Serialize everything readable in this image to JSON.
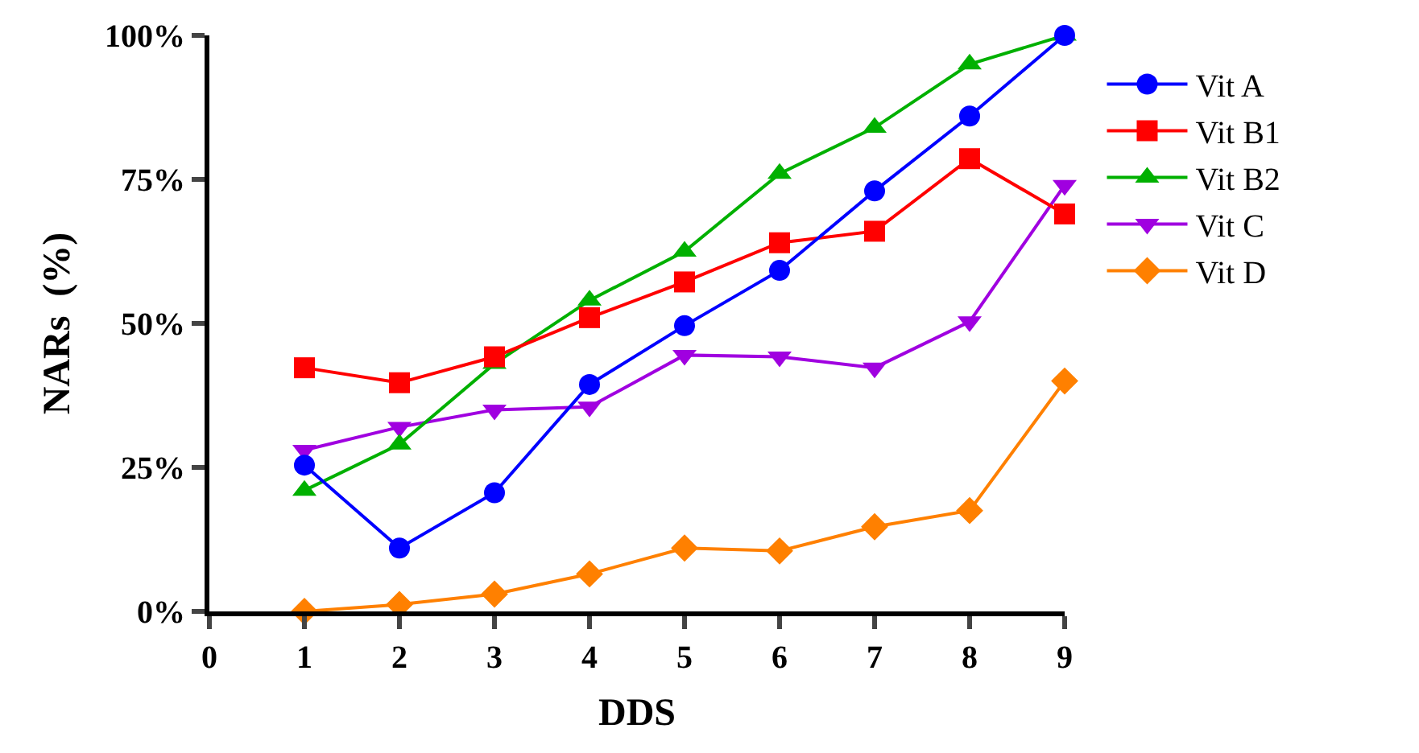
{
  "chart_data": {
    "type": "line",
    "xlabel": "DDS",
    "ylabel": "NARs  (%)",
    "x": [
      1,
      2,
      3,
      4,
      5,
      6,
      7,
      8,
      9
    ],
    "xlim": [
      0,
      9
    ],
    "xticks": [
      0,
      1,
      2,
      3,
      4,
      5,
      6,
      7,
      8,
      9
    ],
    "ylim": [
      0,
      100
    ],
    "yticks": [
      {
        "value": 0,
        "label": "0%"
      },
      {
        "value": 25,
        "label": "25%"
      },
      {
        "value": 50,
        "label": "50%"
      },
      {
        "value": 75,
        "label": "75%"
      },
      {
        "value": 100,
        "label": "100%"
      }
    ],
    "legend": "right",
    "line_style": "solid",
    "series": [
      {
        "name": "Vit A",
        "color": "#0000ff",
        "marker": "circle",
        "values": [
          25.4,
          11,
          20.6,
          39.4,
          49.6,
          59.2,
          73,
          86,
          100
        ]
      },
      {
        "name": "Vit B1",
        "color": "#ff0000",
        "marker": "square",
        "values": [
          42.3,
          39.7,
          44.2,
          51,
          57.2,
          64,
          66,
          78.6,
          69
        ]
      },
      {
        "name": "Vit B2",
        "color": "#00b000",
        "marker": "triangle",
        "values": [
          21,
          29,
          43,
          54,
          62.5,
          76,
          84,
          95,
          100
        ]
      },
      {
        "name": "Vit C",
        "color": "#a000e0",
        "marker": "triangle-down",
        "values": [
          28,
          32,
          35,
          35.5,
          44.5,
          44.2,
          42.3,
          50.3,
          74
        ]
      },
      {
        "name": "Vit D",
        "color": "#ff8000",
        "marker": "diamond",
        "values": [
          0,
          1.2,
          3,
          6.5,
          11,
          10.5,
          14.7,
          17.5,
          40
        ]
      }
    ]
  }
}
